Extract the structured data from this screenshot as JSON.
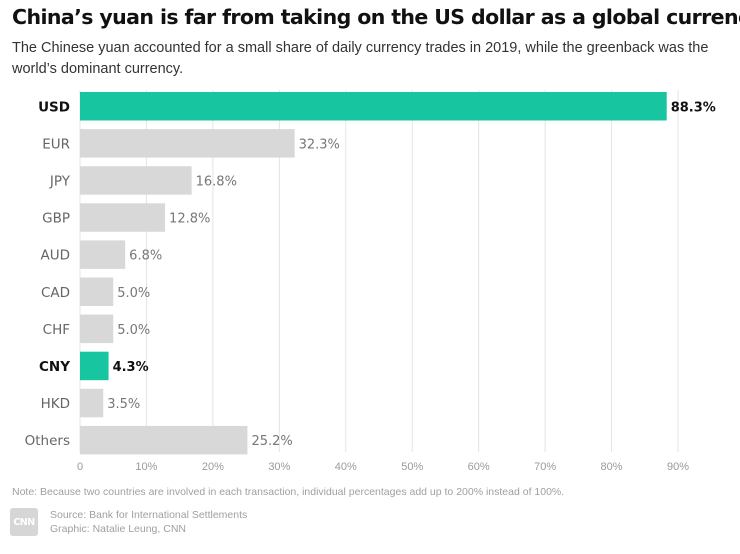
{
  "header": {
    "title": "China’s yuan is far from taking on the US dollar as a global currency",
    "subtitle": "The Chinese yuan accounted for a small share of daily currency trades in 2019, while the greenback was the world’s dominant currency."
  },
  "chart_data": {
    "type": "bar",
    "orientation": "horizontal",
    "categories": [
      "USD",
      "EUR",
      "JPY",
      "GBP",
      "AUD",
      "CAD",
      "CHF",
      "CNY",
      "HKD",
      "Others"
    ],
    "values": [
      88.3,
      32.3,
      16.8,
      12.8,
      6.8,
      5.0,
      5.0,
      4.3,
      3.5,
      25.2
    ],
    "value_labels": [
      "88.3%",
      "32.3%",
      "16.8%",
      "12.8%",
      "6.8%",
      "5.0%",
      "5.0%",
      "4.3%",
      "3.5%",
      "25.2%"
    ],
    "highlighted": [
      "USD",
      "CNY"
    ],
    "xlim": [
      0,
      90
    ],
    "xticks": [
      0,
      10,
      20,
      30,
      40,
      50,
      60,
      70,
      80,
      90
    ],
    "xtick_labels": [
      "0",
      "10%",
      "20%",
      "30%",
      "40%",
      "50%",
      "60%",
      "70%",
      "80%",
      "90%"
    ],
    "grid": "vertical",
    "colors": {
      "highlight": "#17c6a0",
      "default": "#d8d8d8"
    }
  },
  "footer": {
    "note": "Note: Because two countries are involved in each transaction, individual percentages add up to 200% instead of 100%.",
    "logo_text": "CNN",
    "source": "Source: Bank for International Settlements",
    "credit": "Graphic: Natalie Leung, CNN"
  }
}
